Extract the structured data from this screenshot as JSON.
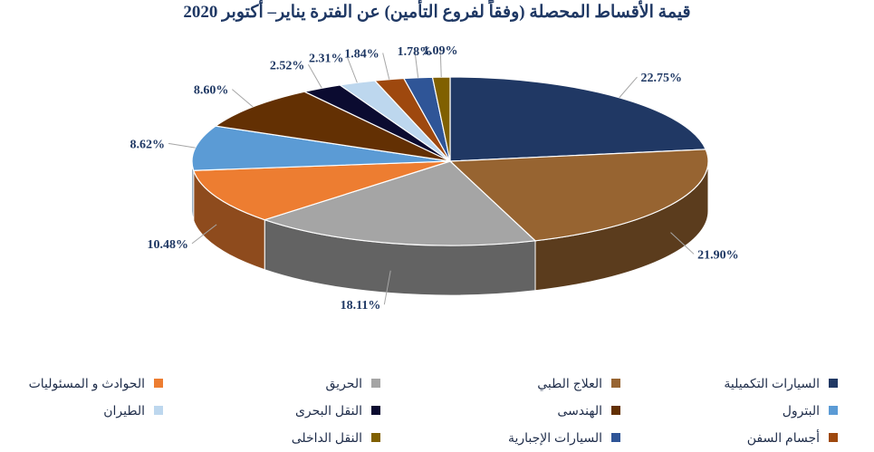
{
  "chart_data": {
    "type": "pie",
    "title": "قيمة الأقساط المحصلة (وفقاً لفروع التأمين) عن الفترة يناير– أكتوبر 2020",
    "slices": [
      {
        "name": "السيارات التكميلية",
        "value": 22.75,
        "label": "22.75%",
        "color": "#203864"
      },
      {
        "name": "العلاج الطبي",
        "value": 21.9,
        "label": "21.90%",
        "color": "#976431"
      },
      {
        "name": "الحريق",
        "value": 18.11,
        "label": "18.11%",
        "color": "#a5a5a5"
      },
      {
        "name": "الحوادث و المسئوليات",
        "value": 10.48,
        "label": "10.48%",
        "color": "#ed7d31"
      },
      {
        "name": "البترول",
        "value": 8.62,
        "label": "8.62%",
        "color": "#5b9bd5"
      },
      {
        "name": "الهندسى",
        "value": 8.6,
        "label": "8.60%",
        "color": "#633003"
      },
      {
        "name": "النقل البحرى",
        "value": 2.52,
        "label": "2.52%",
        "color": "#0b0b30"
      },
      {
        "name": "الطيران",
        "value": 2.31,
        "label": "2.31%",
        "color": "#bdd7ee"
      },
      {
        "name": "أجسام السفن",
        "value": 1.84,
        "label": "1.84%",
        "color": "#9e480e"
      },
      {
        "name": "السيارات الإجبارية",
        "value": 1.78,
        "label": "1.78%",
        "color": "#2f5597"
      },
      {
        "name": "النقل الداخلى",
        "value": 1.09,
        "label": "1.09%",
        "color": "#806000"
      }
    ],
    "legend_position": "bottom"
  }
}
